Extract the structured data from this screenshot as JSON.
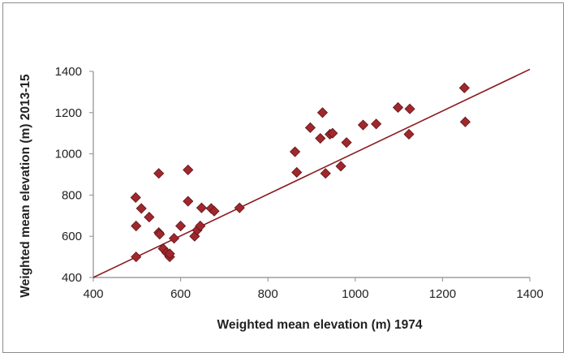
{
  "chart_data": {
    "type": "scatter",
    "xlabel": "Weighted mean elevation (m) 1974",
    "ylabel": "Weighted mean elevation (m)  2013-15",
    "xlim": [
      400,
      1400
    ],
    "ylim": [
      400,
      1400
    ],
    "xticks": [
      "400",
      "600",
      "800",
      "1000",
      "1200",
      "1400"
    ],
    "yticks": [
      "400",
      "600",
      "800",
      "1000",
      "1200",
      "1400"
    ],
    "grid": false,
    "legend": "none",
    "marker_color": "#a0282d",
    "line_color": "#8b1a1f",
    "trendline": {
      "x": [
        400,
        1400
      ],
      "y": [
        400,
        1410
      ]
    },
    "points": [
      {
        "x": 497,
        "y": 788
      },
      {
        "x": 498,
        "y": 650
      },
      {
        "x": 498,
        "y": 500
      },
      {
        "x": 510,
        "y": 735
      },
      {
        "x": 528,
        "y": 693
      },
      {
        "x": 550,
        "y": 905
      },
      {
        "x": 550,
        "y": 618
      },
      {
        "x": 552,
        "y": 610
      },
      {
        "x": 560,
        "y": 540
      },
      {
        "x": 568,
        "y": 520
      },
      {
        "x": 575,
        "y": 500
      },
      {
        "x": 575,
        "y": 515
      },
      {
        "x": 585,
        "y": 590
      },
      {
        "x": 600,
        "y": 650
      },
      {
        "x": 617,
        "y": 922
      },
      {
        "x": 617,
        "y": 770
      },
      {
        "x": 632,
        "y": 600
      },
      {
        "x": 638,
        "y": 630
      },
      {
        "x": 645,
        "y": 650
      },
      {
        "x": 648,
        "y": 738
      },
      {
        "x": 670,
        "y": 735
      },
      {
        "x": 677,
        "y": 722
      },
      {
        "x": 735,
        "y": 738
      },
      {
        "x": 862,
        "y": 1010
      },
      {
        "x": 866,
        "y": 910
      },
      {
        "x": 897,
        "y": 1127
      },
      {
        "x": 920,
        "y": 1075
      },
      {
        "x": 925,
        "y": 1200
      },
      {
        "x": 932,
        "y": 905
      },
      {
        "x": 942,
        "y": 1095
      },
      {
        "x": 948,
        "y": 1100
      },
      {
        "x": 967,
        "y": 940
      },
      {
        "x": 980,
        "y": 1055
      },
      {
        "x": 1018,
        "y": 1140
      },
      {
        "x": 1048,
        "y": 1145
      },
      {
        "x": 1098,
        "y": 1225
      },
      {
        "x": 1123,
        "y": 1095
      },
      {
        "x": 1125,
        "y": 1218
      },
      {
        "x": 1250,
        "y": 1320
      },
      {
        "x": 1252,
        "y": 1155
      }
    ]
  }
}
